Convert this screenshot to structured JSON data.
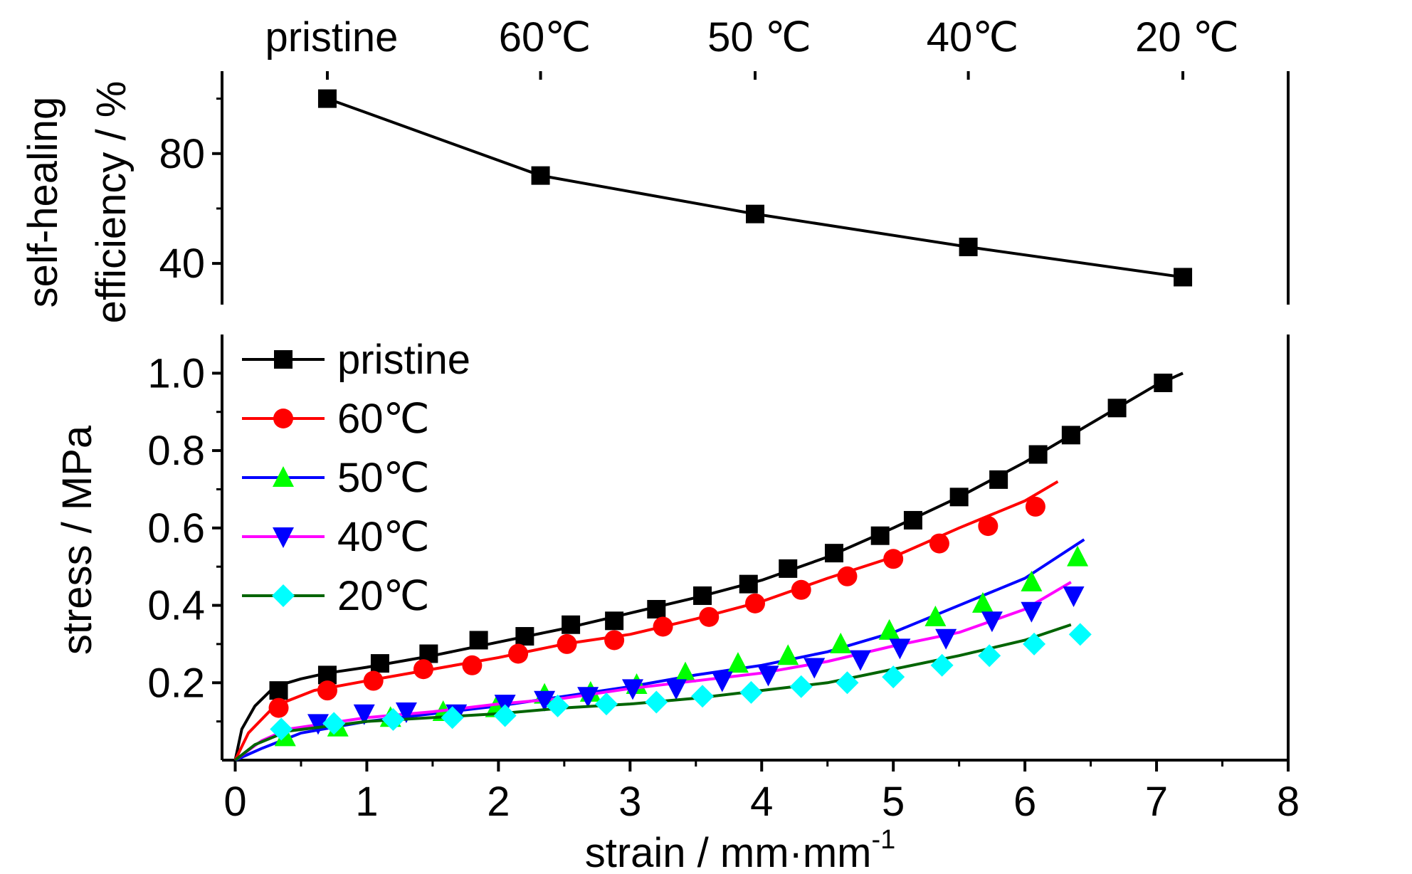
{
  "chart_data": [
    {
      "type": "line",
      "panel": "top",
      "ylabel_line1": "self-healing",
      "ylabel_line2": "efficiency / %",
      "ylim": [
        25,
        110
      ],
      "yticks": [
        40,
        80
      ],
      "top_labels": [
        "pristine",
        "60℃",
        "50 ℃",
        "40℃",
        "20 ℃"
      ],
      "marker": "square",
      "color": "#000000",
      "points": [
        {
          "x": 0.7,
          "y": 100
        },
        {
          "x": 2.32,
          "y": 72
        },
        {
          "x": 3.95,
          "y": 58
        },
        {
          "x": 5.57,
          "y": 46
        },
        {
          "x": 7.2,
          "y": 35
        }
      ]
    },
    {
      "type": "line",
      "panel": "bottom",
      "xlabel": "strain / mm·mm",
      "xlabel_sup": "-1",
      "ylabel": "stress / MPa",
      "xlim": [
        -0.1,
        8
      ],
      "ylim": [
        0,
        1.1
      ],
      "xticks": [
        "0",
        "1",
        "2",
        "3",
        "4",
        "5",
        "6",
        "7",
        "8"
      ],
      "yticks": [
        "0.2",
        "0.4",
        "0.6",
        "0.8",
        "1.0"
      ],
      "legend_position": "top-left",
      "series": [
        {
          "name": "pristine",
          "color": "#000000",
          "marker_color": "#000000",
          "marker": "square",
          "points": [
            [
              0,
              0
            ],
            [
              0.05,
              0.08
            ],
            [
              0.15,
              0.14
            ],
            [
              0.3,
              0.19
            ],
            [
              0.5,
              0.21
            ],
            [
              0.7,
              0.225
            ],
            [
              1.0,
              0.24
            ],
            [
              1.5,
              0.27
            ],
            [
              2.0,
              0.305
            ],
            [
              2.5,
              0.34
            ],
            [
              3.0,
              0.38
            ],
            [
              3.5,
              0.42
            ],
            [
              4.0,
              0.465
            ],
            [
              4.5,
              0.525
            ],
            [
              5.0,
              0.6
            ],
            [
              5.5,
              0.68
            ],
            [
              6.0,
              0.77
            ],
            [
              6.5,
              0.87
            ],
            [
              7.0,
              0.97
            ],
            [
              7.2,
              1.0
            ]
          ],
          "markers": [
            [
              0.33,
              0.18
            ],
            [
              0.7,
              0.22
            ],
            [
              1.1,
              0.25
            ],
            [
              1.47,
              0.275
            ],
            [
              1.85,
              0.31
            ],
            [
              2.2,
              0.32
            ],
            [
              2.55,
              0.35
            ],
            [
              2.88,
              0.36
            ],
            [
              3.2,
              0.39
            ],
            [
              3.55,
              0.425
            ],
            [
              3.9,
              0.455
            ],
            [
              4.2,
              0.495
            ],
            [
              4.55,
              0.535
            ],
            [
              4.9,
              0.58
            ],
            [
              5.15,
              0.62
            ],
            [
              5.5,
              0.68
            ],
            [
              5.8,
              0.725
            ],
            [
              6.1,
              0.79
            ],
            [
              6.35,
              0.84
            ],
            [
              6.7,
              0.91
            ],
            [
              7.05,
              0.975
            ]
          ]
        },
        {
          "name": "60℃",
          "color": "#ff0000",
          "marker_color": "#ff0000",
          "marker": "circle",
          "points": [
            [
              0,
              0
            ],
            [
              0.1,
              0.07
            ],
            [
              0.3,
              0.14
            ],
            [
              0.6,
              0.18
            ],
            [
              1.0,
              0.205
            ],
            [
              1.5,
              0.235
            ],
            [
              2.0,
              0.265
            ],
            [
              2.5,
              0.3
            ],
            [
              3.0,
              0.325
            ],
            [
              3.5,
              0.365
            ],
            [
              4.0,
              0.41
            ],
            [
              4.5,
              0.47
            ],
            [
              5.0,
              0.525
            ],
            [
              5.5,
              0.6
            ],
            [
              6.0,
              0.67
            ],
            [
              6.25,
              0.72
            ]
          ],
          "markers": [
            [
              0.33,
              0.135
            ],
            [
              0.7,
              0.18
            ],
            [
              1.05,
              0.205
            ],
            [
              1.43,
              0.235
            ],
            [
              1.8,
              0.245
            ],
            [
              2.15,
              0.275
            ],
            [
              2.52,
              0.3
            ],
            [
              2.88,
              0.31
            ],
            [
              3.25,
              0.345
            ],
            [
              3.6,
              0.37
            ],
            [
              3.95,
              0.405
            ],
            [
              4.3,
              0.44
            ],
            [
              4.65,
              0.475
            ],
            [
              5.0,
              0.52
            ],
            [
              5.35,
              0.56
            ],
            [
              5.72,
              0.605
            ],
            [
              6.08,
              0.655
            ]
          ]
        },
        {
          "name": "50℃",
          "color": "#0000ff",
          "marker_color": "#00ff00",
          "marker": "triangle-up",
          "points": [
            [
              0,
              0
            ],
            [
              0.2,
              0.03
            ],
            [
              0.5,
              0.07
            ],
            [
              1.0,
              0.1
            ],
            [
              1.5,
              0.12
            ],
            [
              2.0,
              0.14
            ],
            [
              2.5,
              0.165
            ],
            [
              3.0,
              0.19
            ],
            [
              3.5,
              0.22
            ],
            [
              4.0,
              0.245
            ],
            [
              4.5,
              0.28
            ],
            [
              5.0,
              0.33
            ],
            [
              5.5,
              0.4
            ],
            [
              6.0,
              0.47
            ],
            [
              6.45,
              0.57
            ]
          ],
          "markers": [
            [
              0.38,
              0.06
            ],
            [
              0.78,
              0.085
            ],
            [
              1.18,
              0.11
            ],
            [
              1.58,
              0.125
            ],
            [
              1.98,
              0.135
            ],
            [
              2.35,
              0.17
            ],
            [
              2.7,
              0.175
            ],
            [
              3.05,
              0.195
            ],
            [
              3.42,
              0.225
            ],
            [
              3.82,
              0.25
            ],
            [
              4.2,
              0.27
            ],
            [
              4.6,
              0.3
            ],
            [
              4.97,
              0.335
            ],
            [
              5.32,
              0.37
            ],
            [
              5.68,
              0.405
            ],
            [
              6.05,
              0.46
            ],
            [
              6.4,
              0.525
            ]
          ]
        },
        {
          "name": "40℃",
          "color": "#ff00ff",
          "marker_color": "#0000ff",
          "marker": "triangle-down",
          "points": [
            [
              0,
              0
            ],
            [
              0.2,
              0.05
            ],
            [
              0.4,
              0.08
            ],
            [
              1.0,
              0.11
            ],
            [
              1.5,
              0.125
            ],
            [
              2.0,
              0.145
            ],
            [
              2.5,
              0.16
            ],
            [
              3.0,
              0.185
            ],
            [
              3.5,
              0.205
            ],
            [
              4.0,
              0.225
            ],
            [
              4.5,
              0.255
            ],
            [
              5.0,
              0.295
            ],
            [
              5.5,
              0.33
            ],
            [
              6.0,
              0.39
            ],
            [
              6.35,
              0.46
            ]
          ],
          "markers": [
            [
              0.63,
              0.095
            ],
            [
              0.98,
              0.12
            ],
            [
              1.3,
              0.125
            ],
            [
              1.68,
              0.12
            ],
            [
              2.05,
              0.145
            ],
            [
              2.35,
              0.155
            ],
            [
              2.68,
              0.165
            ],
            [
              3.02,
              0.185
            ],
            [
              3.35,
              0.185
            ],
            [
              3.7,
              0.205
            ],
            [
              4.05,
              0.22
            ],
            [
              4.4,
              0.24
            ],
            [
              4.75,
              0.26
            ],
            [
              5.05,
              0.29
            ],
            [
              5.4,
              0.315
            ],
            [
              5.75,
              0.36
            ],
            [
              6.05,
              0.385
            ],
            [
              6.37,
              0.425
            ]
          ]
        },
        {
          "name": "20℃",
          "color": "#006400",
          "marker_color": "#00ffff",
          "marker": "diamond",
          "points": [
            [
              0,
              0
            ],
            [
              0.15,
              0.04
            ],
            [
              0.4,
              0.075
            ],
            [
              1.0,
              0.1
            ],
            [
              1.5,
              0.11
            ],
            [
              2.0,
              0.12
            ],
            [
              2.5,
              0.135
            ],
            [
              3.0,
              0.145
            ],
            [
              3.5,
              0.16
            ],
            [
              4.0,
              0.18
            ],
            [
              4.5,
              0.2
            ],
            [
              5.0,
              0.235
            ],
            [
              5.5,
              0.27
            ],
            [
              6.0,
              0.31
            ],
            [
              6.35,
              0.35
            ]
          ],
          "markers": [
            [
              0.35,
              0.08
            ],
            [
              0.75,
              0.095
            ],
            [
              1.2,
              0.105
            ],
            [
              1.65,
              0.11
            ],
            [
              2.05,
              0.115
            ],
            [
              2.45,
              0.14
            ],
            [
              2.82,
              0.145
            ],
            [
              3.2,
              0.15
            ],
            [
              3.55,
              0.165
            ],
            [
              3.92,
              0.175
            ],
            [
              4.3,
              0.19
            ],
            [
              4.65,
              0.2
            ],
            [
              5.0,
              0.215
            ],
            [
              5.37,
              0.245
            ],
            [
              5.73,
              0.27
            ],
            [
              6.07,
              0.3
            ],
            [
              6.42,
              0.325
            ]
          ]
        }
      ]
    }
  ]
}
